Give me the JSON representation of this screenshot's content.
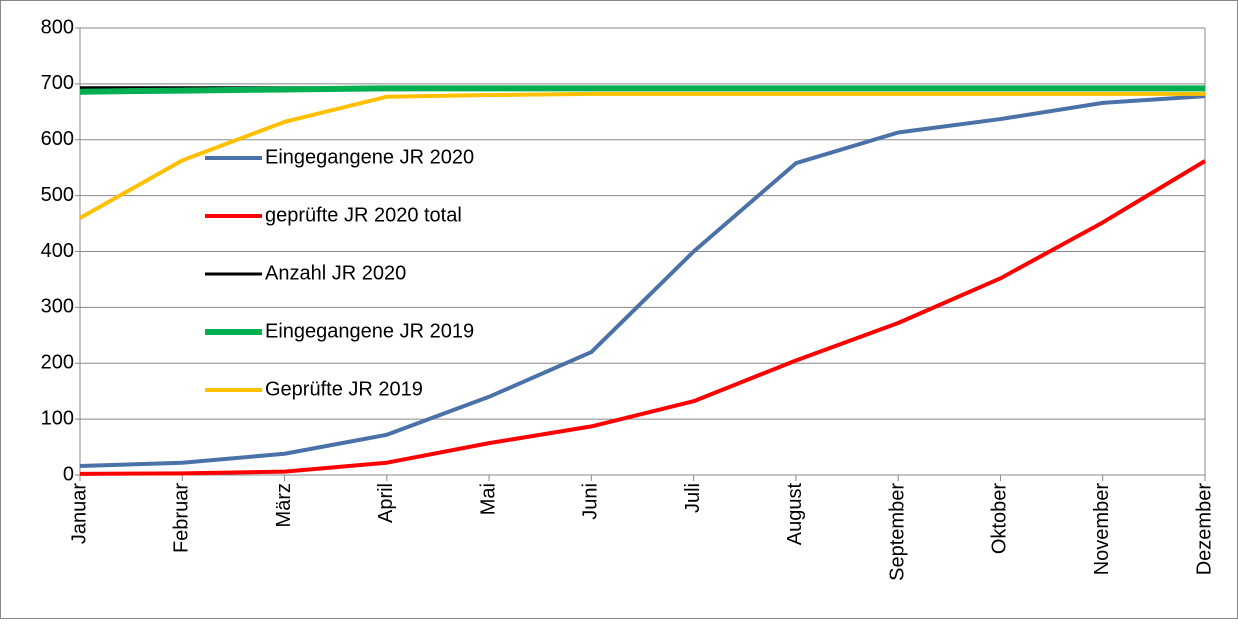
{
  "chart_data": {
    "type": "line",
    "categories": [
      "Januar",
      "Februar",
      "März",
      "April",
      "Mai",
      "Juni",
      "Juli",
      "August",
      "September",
      "Oktober",
      "November",
      "Dezember"
    ],
    "series": [
      {
        "name": "Eingegangene JR 2020",
        "color": "#4a72a8",
        "values": [
          16,
          22,
          38,
          72,
          140,
          220,
          400,
          558,
          613,
          637,
          666,
          678
        ]
      },
      {
        "name": "geprüfte JR 2020 total",
        "color": "#ff0000",
        "values": [
          2,
          3,
          6,
          22,
          57,
          87,
          132,
          205,
          272,
          352,
          452,
          562
        ]
      },
      {
        "name": "Anzahl JR 2020",
        "color": "#000000",
        "values": [
          693,
          693,
          693,
          693,
          693,
          693,
          693,
          693,
          693,
          693,
          693,
          693
        ]
      },
      {
        "name": "Eingegangene JR 2019",
        "color": "#00b050",
        "values": [
          686,
          688,
          690,
          692,
          692,
          692,
          692,
          692,
          692,
          692,
          692,
          692
        ]
      },
      {
        "name": "Geprüfte JR 2019",
        "color": "#ffc000",
        "values": [
          460,
          563,
          632,
          677,
          680,
          682,
          682,
          682,
          682,
          682,
          682,
          682
        ]
      }
    ],
    "ylim": [
      0,
      800
    ],
    "yticks": [
      0,
      100,
      200,
      300,
      400,
      500,
      600,
      700,
      800
    ],
    "grid": true,
    "legend": "left"
  }
}
